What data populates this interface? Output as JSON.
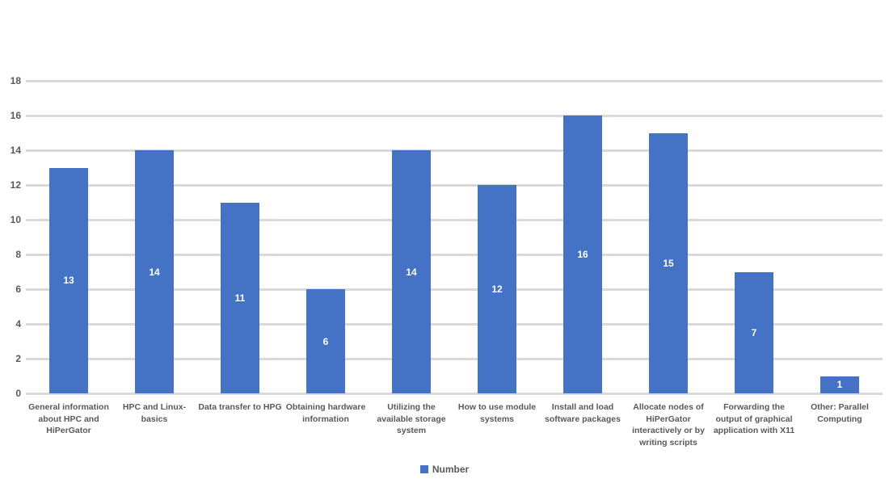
{
  "chart_data": {
    "type": "bar",
    "title": "",
    "categories": [
      "General information about HPC and HiPerGator",
      "HPC and Linux-basics",
      "Data transfer to HPG",
      "Obtaining hardware information",
      "Utilizing the available storage system",
      "How to use module systems",
      "Install and load software packages",
      "Allocate nodes of HiPerGator interactively or by writing scripts",
      "Forwarding the output of graphical application with X11",
      "Other: Parallel Computing"
    ],
    "values": [
      13,
      14,
      11,
      6,
      14,
      12,
      16,
      15,
      7,
      1
    ],
    "xlabel": "",
    "ylabel": "",
    "ylim": [
      0,
      18
    ],
    "ytick_step": 2,
    "grid": "horizontal",
    "legend": {
      "position": "bottom",
      "entries": [
        {
          "label": "Number",
          "color": "#4472C4"
        }
      ]
    },
    "colors": {
      "bar": "#4472C4",
      "gridline": "#D9D9D9",
      "axis_text": "#595959",
      "data_label": "#FFFFFF",
      "background": "#FFFFFF"
    }
  }
}
